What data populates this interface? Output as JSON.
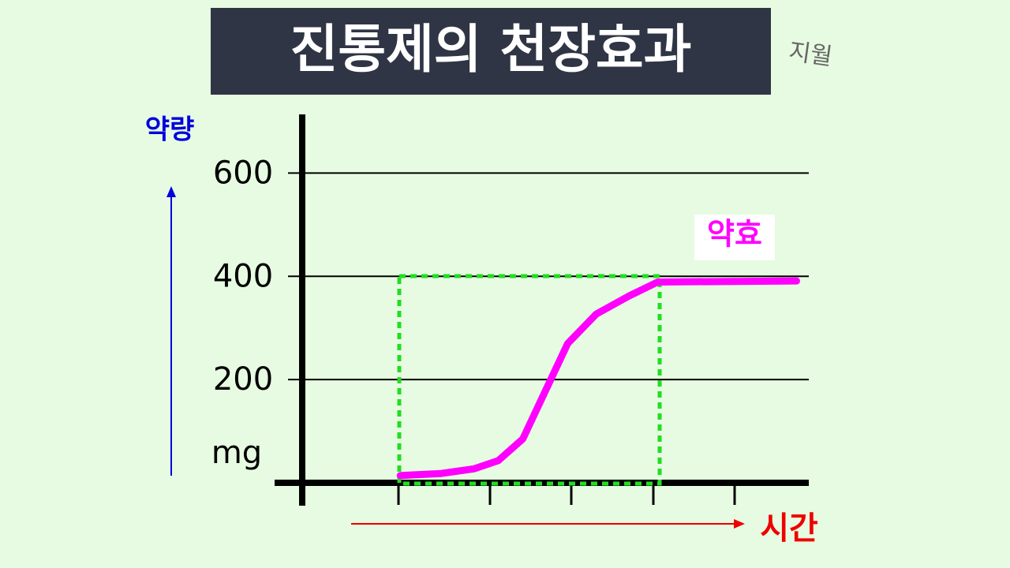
{
  "chart_data": {
    "type": "line",
    "title": "진통제의 천장효과",
    "signature": "지월",
    "y_label": "약량",
    "y_unit": "mg",
    "x_label": "시간",
    "x": [
      1.2,
      1.7,
      2.1,
      2.4,
      2.7,
      3.0,
      3.25,
      3.6,
      4.0,
      4.35,
      6.05
    ],
    "series": [
      {
        "name": "약효",
        "color": "#ff00ff",
        "values": [
          14,
          18,
          27,
          43,
          85,
          186,
          270,
          327,
          362,
          389,
          391
        ]
      }
    ],
    "xlim": [
      0,
      6.2
    ],
    "ylim": [
      0,
      700
    ],
    "yticks": [
      200,
      400,
      600
    ],
    "grid": true
  }
}
